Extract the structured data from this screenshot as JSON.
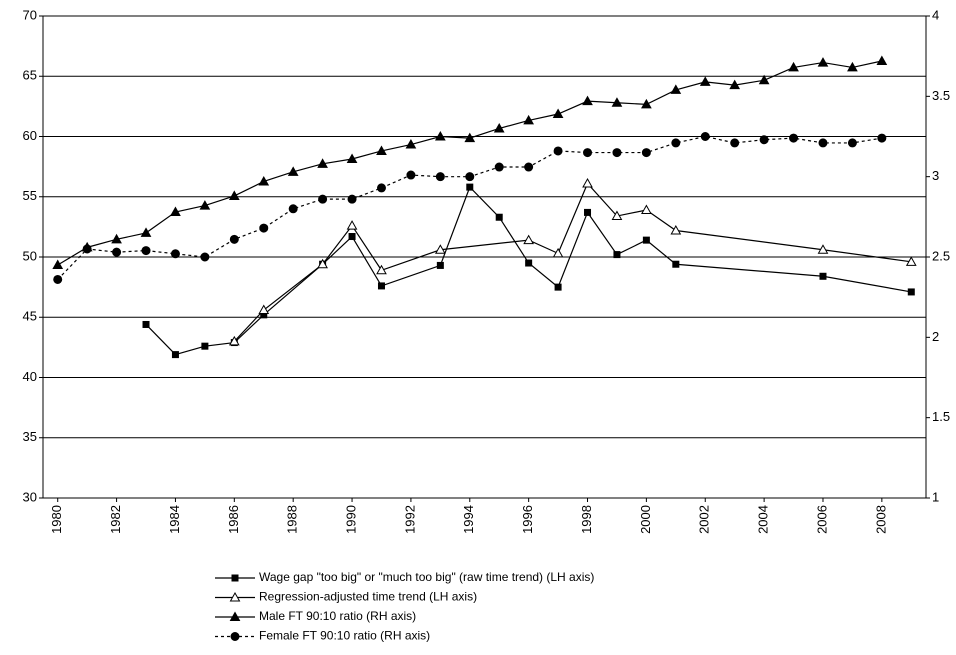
{
  "chart_data": {
    "type": "line",
    "xlim": [
      1979.5,
      2009.5
    ],
    "xticks": [
      1980,
      1982,
      1984,
      1986,
      1988,
      1990,
      1992,
      1994,
      1996,
      1998,
      2000,
      2002,
      2004,
      2006,
      2008
    ],
    "ylim": [
      30,
      70
    ],
    "yticks": [
      30,
      35,
      40,
      45,
      50,
      55,
      60,
      65,
      70
    ],
    "y2lim": [
      1,
      4
    ],
    "y2ticks": [
      1,
      1.5,
      2,
      2.5,
      3,
      3.5,
      4
    ],
    "grid": true,
    "legend": "bottom",
    "series": [
      {
        "name": "Wage gap \"too big\" or \"much too big\" (raw time trend) (LH axis)",
        "color": "#000000",
        "marker": "square",
        "filled": true,
        "dash": false,
        "x": [
          1983,
          1984,
          1985,
          1986,
          1987,
          1989,
          1990,
          1991,
          1993,
          1994,
          1995,
          1996,
          1997,
          1998,
          1999,
          2000,
          2001,
          2006,
          2009
        ],
        "values": [
          44.4,
          41.9,
          42.6,
          42.9,
          45.2,
          49.4,
          51.7,
          47.6,
          49.3,
          55.8,
          53.3,
          49.5,
          47.5,
          53.7,
          50.2,
          51.4,
          49.4,
          48.4,
          47.1
        ]
      },
      {
        "name": "Regression-adjusted time trend (LH axis)",
        "color": "#000000",
        "marker": "triangle",
        "filled": false,
        "dash": false,
        "x": [
          1986,
          1987,
          1989,
          1990,
          1991,
          1993,
          1996,
          1997,
          1998,
          1999,
          2000,
          2001,
          2006,
          2009
        ],
        "values": [
          43.0,
          45.6,
          49.4,
          52.6,
          48.9,
          50.6,
          51.4,
          50.3,
          56.1,
          53.4,
          53.9,
          52.2,
          50.6,
          49.6
        ]
      },
      {
        "name": "Male FT 90:10 ratio (RH axis)",
        "color": "#000000",
        "marker": "triangle",
        "filled": true,
        "dash": false,
        "axis": "y2",
        "x": [
          1980,
          1981,
          1982,
          1983,
          1984,
          1985,
          1986,
          1987,
          1988,
          1989,
          1990,
          1991,
          1992,
          1993,
          1994,
          1995,
          1996,
          1997,
          1998,
          1999,
          2000,
          2001,
          2002,
          2003,
          2004,
          2005,
          2006,
          2007,
          2008
        ],
        "values": [
          2.45,
          2.56,
          2.61,
          2.65,
          2.78,
          2.82,
          2.88,
          2.97,
          3.03,
          3.08,
          3.11,
          3.16,
          3.2,
          3.25,
          3.24,
          3.3,
          3.35,
          3.39,
          3.47,
          3.46,
          3.45,
          3.54,
          3.59,
          3.57,
          3.6,
          3.68,
          3.71,
          3.68,
          3.72
        ]
      },
      {
        "name": "Female FT 90:10 ratio (RH axis)",
        "color": "#000000",
        "marker": "circle",
        "filled": true,
        "dash": true,
        "axis": "y2",
        "x": [
          1980,
          1981,
          1982,
          1983,
          1984,
          1985,
          1986,
          1987,
          1988,
          1989,
          1990,
          1991,
          1992,
          1993,
          1994,
          1995,
          1996,
          1997,
          1998,
          1999,
          2000,
          2001,
          2002,
          2003,
          2004,
          2005,
          2006,
          2007,
          2008
        ],
        "values": [
          2.36,
          2.55,
          2.53,
          2.54,
          2.52,
          2.5,
          2.61,
          2.68,
          2.8,
          2.86,
          2.86,
          2.93,
          3.01,
          3.0,
          3.0,
          3.06,
          3.06,
          3.16,
          3.15,
          3.15,
          3.15,
          3.21,
          3.25,
          3.21,
          3.23,
          3.24,
          3.21,
          3.21,
          3.24
        ]
      }
    ]
  }
}
